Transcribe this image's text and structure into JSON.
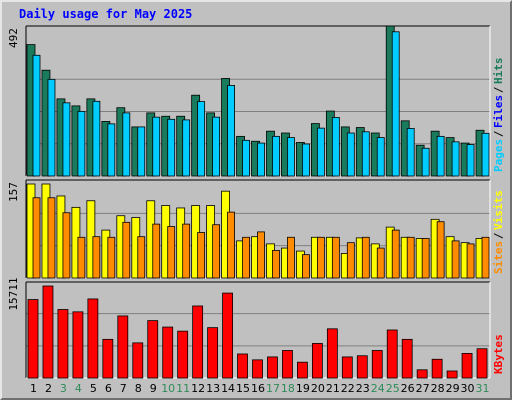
{
  "title": "Daily usage for May 2025",
  "colors": {
    "hits": "#1a7a5c",
    "files": "#00ccff",
    "pages": "#00ccff",
    "visits": "#ffff00",
    "sites": "#ff8c00",
    "kbytes": "#ff0000",
    "day_weekday": "#000000",
    "day_weekend": "#2e8b57",
    "bg": "#c0c0c0",
    "title": "#0000ff"
  },
  "chart_data": [
    {
      "type": "bar",
      "title": "Daily usage for May 2025",
      "panel": "hits_files_pages",
      "ymax_label": "492",
      "ylim": [
        0,
        492
      ],
      "legend": [
        {
          "text": "Pages",
          "color": "#00ccff"
        },
        {
          "text": "Files",
          "color": "#0000ff"
        },
        {
          "text": "Hits",
          "color": "#1a7a5c"
        }
      ],
      "categories": [
        "1",
        "2",
        "3",
        "4",
        "5",
        "6",
        "7",
        "8",
        "9",
        "10",
        "11",
        "12",
        "13",
        "14",
        "15",
        "16",
        "17",
        "18",
        "19",
        "20",
        "21",
        "22",
        "23",
        "24",
        "25",
        "26",
        "27",
        "28",
        "29",
        "30",
        "31"
      ],
      "series": [
        {
          "name": "Hits",
          "values": [
            431,
            347,
            253,
            230,
            253,
            179,
            224,
            161,
            207,
            196,
            196,
            265,
            207,
            320,
            130,
            114,
            147,
            141,
            110,
            172,
            213,
            161,
            159,
            141,
            492,
            181,
            101,
            147,
            126,
            108,
            150
          ]
        },
        {
          "name": "Files",
          "values": [
            396,
            317,
            240,
            212,
            245,
            171,
            207,
            161,
            193,
            186,
            184,
            244,
            193,
            297,
            117,
            108,
            130,
            126,
            105,
            157,
            192,
            141,
            145,
            126,
            473,
            156,
            91,
            130,
            112,
            103,
            140
          ]
        }
      ]
    },
    {
      "type": "bar",
      "panel": "visits_sites",
      "ymax_label": "157",
      "ylim": [
        0,
        157
      ],
      "legend": [
        {
          "text": "Sites",
          "color": "#ff8c00"
        },
        {
          "text": "Visits",
          "color": "#ffff00"
        }
      ],
      "categories": [
        "1",
        "2",
        "3",
        "4",
        "5",
        "6",
        "7",
        "8",
        "9",
        "10",
        "11",
        "12",
        "13",
        "14",
        "15",
        "16",
        "17",
        "18",
        "19",
        "20",
        "21",
        "22",
        "23",
        "24",
        "25",
        "26",
        "27",
        "28",
        "29",
        "30",
        "31"
      ],
      "series": [
        {
          "name": "Visits",
          "values": [
            157,
            157,
            137,
            118,
            129,
            80,
            104,
            101,
            129,
            121,
            117,
            121,
            121,
            145,
            62,
            69,
            57,
            50,
            45,
            68,
            68,
            41,
            67,
            57,
            85,
            68,
            66,
            98,
            69,
            59,
            66
          ]
        },
        {
          "name": "Sites",
          "values": [
            134,
            134,
            109,
            68,
            69,
            68,
            93,
            69,
            90,
            86,
            90,
            76,
            89,
            110,
            68,
            77,
            46,
            68,
            39,
            68,
            68,
            59,
            68,
            50,
            80,
            68,
            66,
            94,
            62,
            57,
            68
          ]
        }
      ]
    },
    {
      "type": "bar",
      "panel": "kbytes",
      "ymax_label": "15711",
      "ylim": [
        0,
        15711
      ],
      "legend": [
        {
          "text": "KBytes",
          "color": "#ff0000"
        }
      ],
      "categories": [
        "1",
        "2",
        "3",
        "4",
        "5",
        "6",
        "7",
        "8",
        "9",
        "10",
        "11",
        "12",
        "13",
        "14",
        "15",
        "16",
        "17",
        "18",
        "19",
        "20",
        "21",
        "22",
        "23",
        "24",
        "25",
        "26",
        "27",
        "28",
        "29",
        "30",
        "31"
      ],
      "series": [
        {
          "name": "KBytes",
          "values": [
            13400,
            15711,
            11700,
            11300,
            13500,
            6600,
            10600,
            6000,
            9800,
            8700,
            8000,
            12300,
            8600,
            14500,
            4100,
            3100,
            3600,
            4700,
            2700,
            5900,
            8400,
            3600,
            3800,
            4700,
            8200,
            6600,
            1400,
            3200,
            1200,
            4200,
            5000
          ]
        }
      ]
    }
  ]
}
